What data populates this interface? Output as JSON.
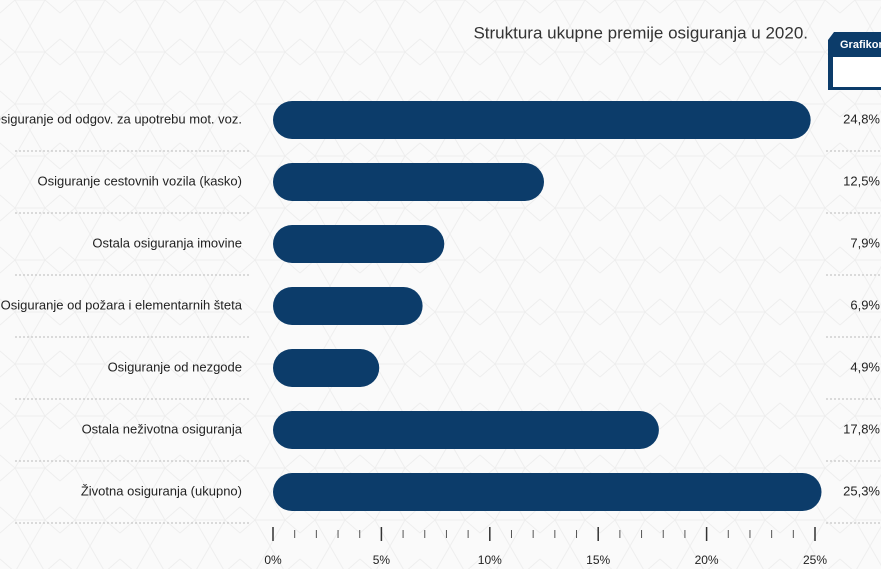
{
  "tab_label": "Grafikon",
  "chart_data": {
    "type": "bar",
    "orientation": "horizontal",
    "title": "Struktura ukupne premije osiguranja u 2020.",
    "categories": [
      "Osiguranje od odgov. za upotrebu mot. voz.",
      "Osiguranje cestovnih vozila (kasko)",
      "Ostala osiguranja imovine",
      "Osiguranje od požara i elementarnih šteta",
      "Osiguranje od nezgode",
      "Ostala neživotna osiguranja",
      "Životna osiguranja (ukupno)"
    ],
    "values": [
      24.8,
      12.5,
      7.9,
      6.9,
      4.9,
      17.8,
      25.3
    ],
    "value_labels": [
      "24,8%",
      "12,5%",
      "7,9%",
      "6,9%",
      "4,9%",
      "17,8%",
      "25,3%"
    ],
    "color": "#0c3c6a",
    "xlim": [
      0,
      25
    ],
    "xticks": [
      {
        "value": 0,
        "label": "0%"
      },
      {
        "value": 5,
        "label": "5%"
      },
      {
        "value": 10,
        "label": "10%"
      },
      {
        "value": 15,
        "label": "15%"
      },
      {
        "value": 20,
        "label": "20%"
      },
      {
        "value": 25,
        "label": "25%"
      }
    ],
    "minor_xticks": [
      1,
      2,
      3,
      4,
      6,
      7,
      8,
      9,
      11,
      12,
      13,
      14,
      16,
      17,
      18,
      19,
      21,
      22,
      23,
      24
    ]
  }
}
